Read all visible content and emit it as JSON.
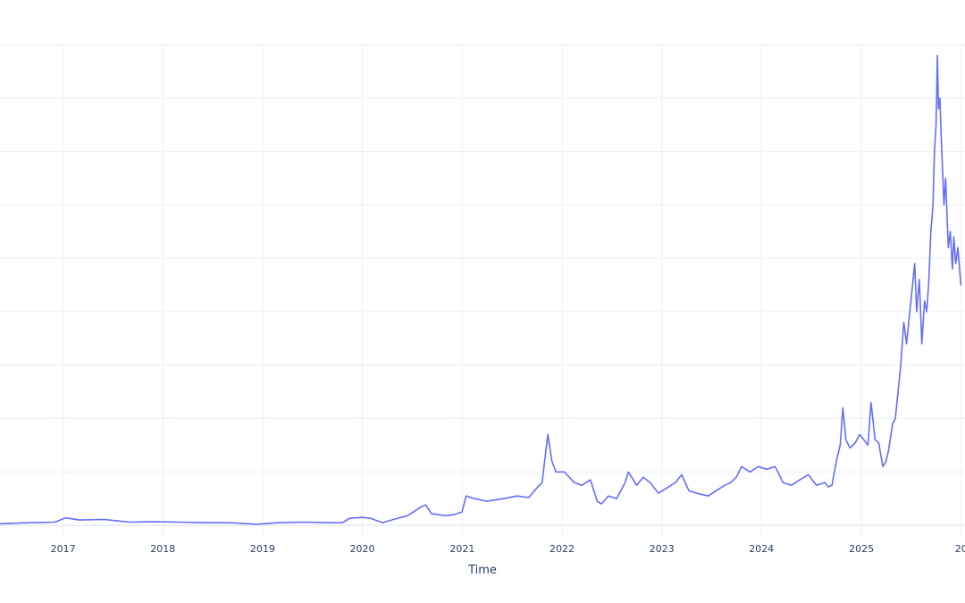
{
  "chart_data": {
    "type": "line",
    "title": "",
    "xlabel": "Time",
    "ylabel": "",
    "x_ticks": [
      "2017",
      "2018",
      "2019",
      "2020",
      "2021",
      "2022",
      "2023",
      "2024",
      "2025",
      "20"
    ],
    "xlim": [
      "2016-05-15",
      "2026-01-15"
    ],
    "ylim": [
      -0.2,
      9.0
    ],
    "grid": true,
    "legend": "none",
    "series": [
      {
        "color": "#636efa",
        "x": [
          "2016-05-15",
          "2016-09-01",
          "2016-12-01",
          "2017-01-10",
          "2017-03-01",
          "2017-06-01",
          "2017-09-01",
          "2017-12-01",
          "2018-03-01",
          "2018-06-01",
          "2018-09-01",
          "2018-12-10",
          "2019-01-01",
          "2019-03-01",
          "2019-06-01",
          "2019-09-01",
          "2019-10-20",
          "2019-11-15",
          "2020-01-01",
          "2020-02-01",
          "2020-03-15",
          "2020-05-01",
          "2020-06-15",
          "2020-08-05",
          "2020-08-20",
          "2020-09-10",
          "2020-11-01",
          "2020-12-01",
          "2020-12-31",
          "2021-01-15",
          "2021-02-15",
          "2021-04-01",
          "2021-06-01",
          "2021-07-20",
          "2021-09-01",
          "2021-10-01",
          "2021-10-20",
          "2021-11-10",
          "2021-11-25",
          "2021-12-10",
          "2022-01-10",
          "2022-02-15",
          "2022-03-15",
          "2022-04-15",
          "2022-05-10",
          "2022-05-25",
          "2022-06-20",
          "2022-07-20",
          "2022-08-20",
          "2022-09-01",
          "2022-10-01",
          "2022-10-25",
          "2022-11-20",
          "2022-12-20",
          "2023-01-20",
          "2023-02-20",
          "2023-03-15",
          "2023-04-10",
          "2023-05-10",
          "2023-06-20",
          "2023-07-20",
          "2023-08-20",
          "2023-09-10",
          "2023-10-01",
          "2023-10-20",
          "2023-11-20",
          "2023-12-20",
          "2024-01-20",
          "2024-02-20",
          "2024-03-20",
          "2024-04-20",
          "2024-05-20",
          "2024-06-20",
          "2024-07-20",
          "2024-08-20",
          "2024-09-01",
          "2024-09-15",
          "2024-10-01",
          "2024-10-15",
          "2024-10-25",
          "2024-11-05",
          "2024-11-20",
          "2024-12-10",
          "2024-12-25",
          "2025-01-10",
          "2025-01-25",
          "2025-02-05",
          "2025-02-20",
          "2025-03-05",
          "2025-03-20",
          "2025-04-01",
          "2025-04-10",
          "2025-04-25",
          "2025-05-05",
          "2025-05-15",
          "2025-05-25",
          "2025-06-05",
          "2025-06-15",
          "2025-06-25",
          "2025-07-05",
          "2025-07-15",
          "2025-07-22",
          "2025-08-01",
          "2025-08-10",
          "2025-08-20",
          "2025-08-28",
          "2025-09-05",
          "2025-09-12",
          "2025-09-20",
          "2025-09-25",
          "2025-10-01",
          "2025-10-06",
          "2025-10-10",
          "2025-10-15",
          "2025-10-22",
          "2025-10-30",
          "2025-11-05",
          "2025-11-15",
          "2025-11-22",
          "2025-11-30",
          "2025-12-05",
          "2025-12-12",
          "2025-12-20",
          "2025-12-31"
        ],
        "y": [
          0.03,
          0.05,
          0.06,
          0.14,
          0.1,
          0.11,
          0.06,
          0.07,
          0.06,
          0.05,
          0.05,
          0.02,
          0.03,
          0.05,
          0.06,
          0.05,
          0.05,
          0.13,
          0.15,
          0.13,
          0.05,
          0.12,
          0.18,
          0.35,
          0.38,
          0.22,
          0.18,
          0.2,
          0.25,
          0.55,
          0.5,
          0.45,
          0.5,
          0.55,
          0.52,
          0.7,
          0.8,
          1.7,
          1.2,
          1.0,
          1.0,
          0.8,
          0.75,
          0.85,
          0.45,
          0.4,
          0.55,
          0.5,
          0.8,
          1.0,
          0.75,
          0.9,
          0.8,
          0.6,
          0.7,
          0.8,
          0.95,
          0.65,
          0.6,
          0.55,
          0.65,
          0.75,
          0.8,
          0.9,
          1.1,
          1.0,
          1.1,
          1.05,
          1.1,
          0.8,
          0.75,
          0.85,
          0.95,
          0.75,
          0.8,
          0.72,
          0.75,
          1.2,
          1.5,
          2.2,
          1.6,
          1.45,
          1.55,
          1.7,
          1.6,
          1.5,
          2.3,
          1.6,
          1.55,
          1.1,
          1.2,
          1.4,
          1.9,
          2.0,
          2.5,
          3.0,
          3.8,
          3.4,
          3.9,
          4.4,
          4.9,
          4.0,
          4.6,
          3.4,
          4.2,
          4.0,
          4.6,
          5.5,
          6.0,
          7.0,
          7.5,
          8.8,
          7.8,
          8.0,
          7.0,
          6.0,
          6.5,
          5.2,
          5.5,
          4.8,
          5.4,
          4.9,
          5.2,
          4.5
        ]
      }
    ]
  }
}
